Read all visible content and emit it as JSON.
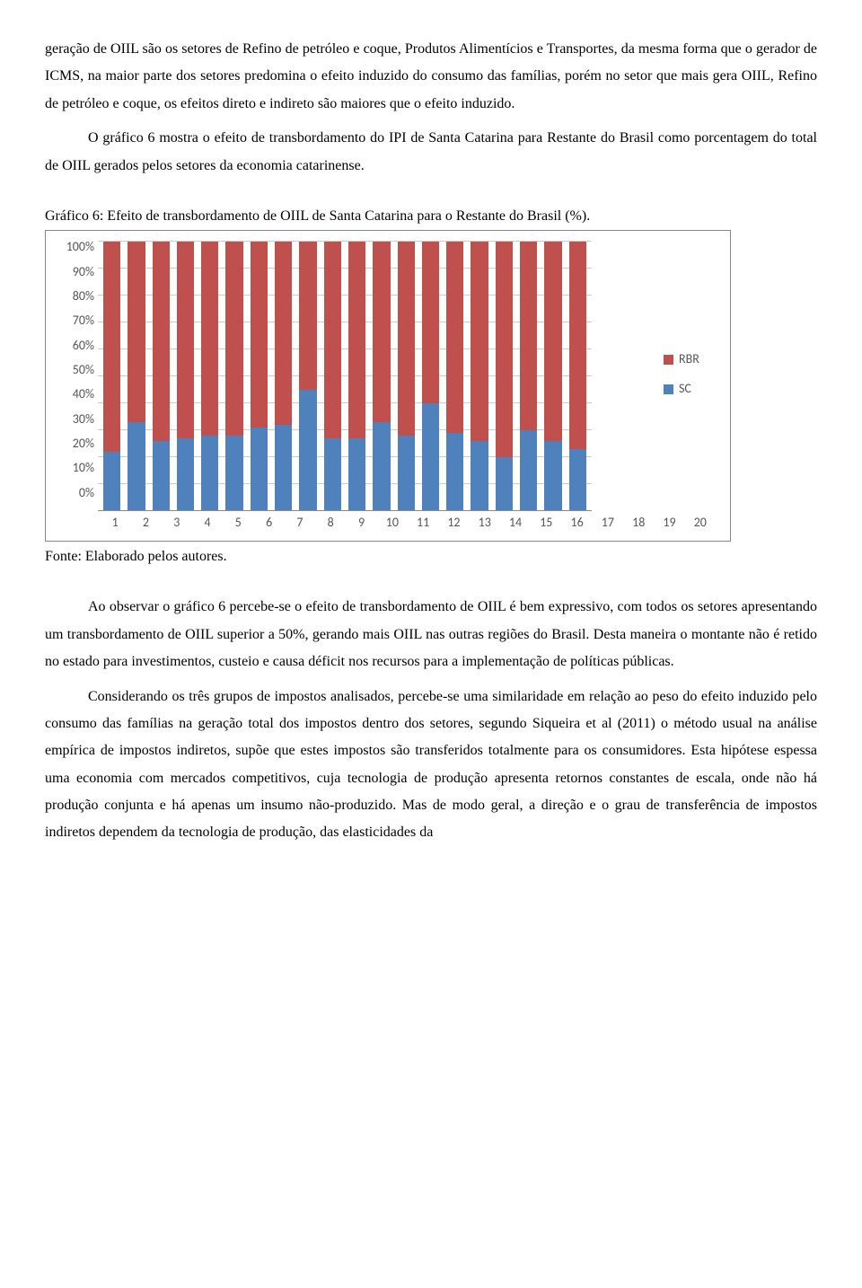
{
  "paragraphs": {
    "p1": "geração de OIIL são os setores de Refino de petróleo e coque, Produtos Alimentícios e Transportes, da mesma forma que o gerador de ICMS, na maior parte dos setores predomina o efeito induzido do consumo das famílias, porém no setor que mais gera OIIL, Refino de petróleo e coque, os efeitos direto e indireto são maiores que o efeito induzido.",
    "p2": "O gráfico 6 mostra o efeito de transbordamento do IPI de Santa Catarina para Restante do Brasil como porcentagem do total de OIIL gerados pelos setores da economia catarinense.",
    "p3": "Ao observar o gráfico 6 percebe-se o efeito de transbordamento de OIIL é bem expressivo, com todos os setores apresentando um transbordamento de OIIL superior a 50%, gerando mais OIIL nas outras regiões do Brasil. Desta maneira o montante não é retido no estado para investimentos, custeio e causa déficit nos recursos para a implementação de políticas públicas.",
    "p4": "Considerando os três grupos de impostos analisados, percebe-se uma similaridade em relação ao peso do efeito induzido pelo consumo das famílias na geração total dos impostos dentro dos setores, segundo Siqueira et al (2011) o método usual na análise empírica de impostos indiretos, supõe que estes impostos são transferidos totalmente para os consumidores. Esta hipótese espessa uma economia com mercados competitivos, cuja tecnologia de produção apresenta retornos constantes de escala, onde não há produção conjunta e há apenas um insumo não-produzido. Mas de modo geral, a direção e o grau de transferência de impostos indiretos dependem da tecnologia de produção, das elasticidades da"
  },
  "chart": {
    "title": "Gráfico 6: Efeito de transbordamento de OIIL de Santa Catarina para o Restante do Brasil (%).",
    "source": "Fonte: Elaborado pelos autores.",
    "type": "stacked-bar",
    "categories": [
      "1",
      "2",
      "3",
      "4",
      "5",
      "6",
      "7",
      "8",
      "9",
      "10",
      "11",
      "12",
      "13",
      "14",
      "15",
      "16",
      "17",
      "18",
      "19",
      "20"
    ],
    "sc_values": [
      22,
      33,
      26,
      27,
      28,
      28,
      31,
      32,
      45,
      27,
      27,
      33,
      28,
      40,
      29,
      26,
      20,
      30,
      26,
      23
    ],
    "series": [
      {
        "name": "RBR",
        "color": "#c0504d"
      },
      {
        "name": "SC",
        "color": "#4f81bd"
      }
    ],
    "ylim": [
      0,
      100
    ],
    "ytick_step": 10,
    "yticks": [
      "100%",
      "90%",
      "80%",
      "70%",
      "60%",
      "50%",
      "40%",
      "30%",
      "20%",
      "10%",
      "0%"
    ],
    "background_color": "#ffffff",
    "grid_color": "#cccccc",
    "axis_font": "Calibri, Arial, sans-serif",
    "axis_fontsize": 14
  }
}
